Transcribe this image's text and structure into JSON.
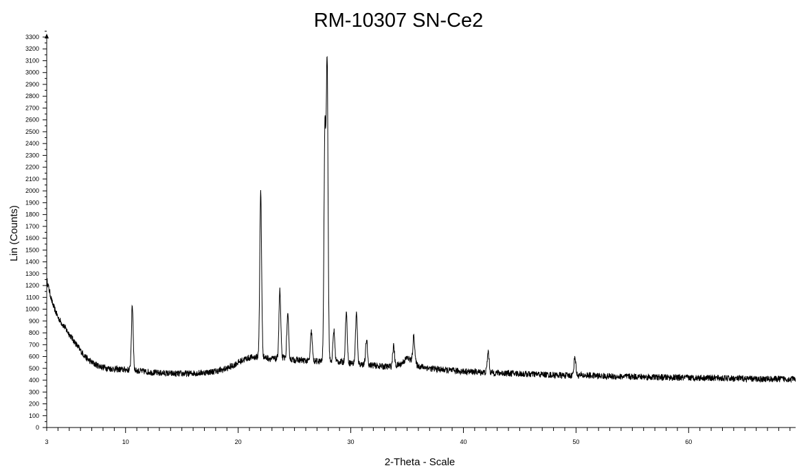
{
  "chart_data": {
    "type": "line",
    "title": "RM-10307 SN-Ce2",
    "xlabel": "2-Theta - Scale",
    "ylabel": "Lin (Counts)",
    "xlim": [
      3,
      69.5
    ],
    "ylim": [
      0,
      3300
    ],
    "y_ticks": [
      0,
      100,
      200,
      300,
      400,
      500,
      600,
      700,
      800,
      900,
      1000,
      1100,
      1200,
      1300,
      1400,
      1500,
      1600,
      1700,
      1800,
      1900,
      2000,
      2100,
      2200,
      2300,
      2400,
      2500,
      2600,
      2700,
      2800,
      2900,
      3000,
      3100,
      3200,
      3300
    ],
    "x_tick_labels": [
      3,
      10,
      20,
      30,
      40,
      50,
      60
    ],
    "grid": false,
    "series": [
      {
        "x": [
          3,
          3.5,
          4,
          4.5,
          5,
          5.5,
          6,
          6.5,
          7,
          7.5,
          8,
          8.5,
          9,
          9.5,
          10,
          10.5,
          11,
          11.5,
          12,
          12.5,
          13,
          13.5,
          14,
          14.5,
          15,
          15.5,
          16,
          16.5,
          17,
          17.5,
          18,
          18.5,
          19,
          19.5,
          20,
          20.5,
          21,
          21.5,
          22,
          22.5,
          23,
          23.5,
          24,
          24.5,
          25,
          25.5,
          26,
          26.5,
          27,
          27.5,
          28,
          28.5,
          29,
          29.5,
          30,
          30.5,
          31,
          31.5,
          32,
          32.5,
          33,
          33.5,
          34,
          34.5,
          35,
          35.5,
          36,
          36.5,
          37,
          37.5,
          38,
          38.5,
          39,
          39.5,
          40,
          40.5,
          41,
          41.5,
          42,
          42.5,
          43,
          43.5,
          44,
          44.5,
          45,
          45.5,
          46,
          46.5,
          47,
          47.5,
          48,
          48.5,
          49,
          49.5,
          50,
          50.5,
          51,
          51.5,
          52,
          52.5,
          53,
          53.5,
          54,
          54.5,
          55,
          55.5,
          56,
          56.5,
          57,
          57.5,
          58,
          58.5,
          59,
          59.5,
          60,
          60.5,
          61,
          61.5,
          62,
          62.5,
          63,
          63.5,
          64,
          64.5,
          65,
          65.5,
          66,
          66.5,
          67,
          67.5,
          68,
          68.5,
          69,
          69.5
        ],
        "y": [
          1250,
          1050,
          930,
          860,
          790,
          720,
          650,
          590,
          550,
          525,
          510,
          500,
          495,
          490,
          490,
          485,
          480,
          475,
          470,
          465,
          460,
          460,
          455,
          455,
          455,
          455,
          460,
          460,
          465,
          470,
          475,
          485,
          500,
          520,
          550,
          575,
          590,
          595,
          600,
          590,
          580,
          580,
          590,
          580,
          570,
          570,
          565,
          560,
          560,
          560,
          560,
          560,
          555,
          550,
          545,
          540,
          535,
          530,
          525,
          520,
          515,
          515,
          520,
          540,
          590,
          560,
          520,
          510,
          500,
          495,
          490,
          485,
          480,
          478,
          475,
          472,
          470,
          468,
          466,
          464,
          462,
          460,
          458,
          456,
          454,
          452,
          450,
          450,
          448,
          446,
          444,
          442,
          440,
          440,
          440,
          440,
          440,
          438,
          436,
          434,
          432,
          430,
          430,
          430,
          430,
          430,
          428,
          426,
          425,
          424,
          423,
          422,
          421,
          420,
          420,
          420,
          420,
          420,
          420,
          418,
          416,
          415,
          414,
          413,
          412,
          411,
          410,
          410,
          410,
          410,
          410,
          410,
          410,
          410
        ]
      }
    ],
    "peaks": [
      {
        "x": 10.6,
        "y": 1025
      },
      {
        "x": 22.0,
        "y": 1990
      },
      {
        "x": 23.7,
        "y": 1160
      },
      {
        "x": 24.4,
        "y": 950
      },
      {
        "x": 26.5,
        "y": 810
      },
      {
        "x": 27.7,
        "y": 2480
      },
      {
        "x": 27.9,
        "y": 3070
      },
      {
        "x": 28.5,
        "y": 820
      },
      {
        "x": 29.6,
        "y": 975
      },
      {
        "x": 30.5,
        "y": 965
      },
      {
        "x": 31.4,
        "y": 740
      },
      {
        "x": 33.8,
        "y": 690
      },
      {
        "x": 35.6,
        "y": 780
      },
      {
        "x": 42.2,
        "y": 640
      },
      {
        "x": 49.9,
        "y": 600
      }
    ]
  }
}
